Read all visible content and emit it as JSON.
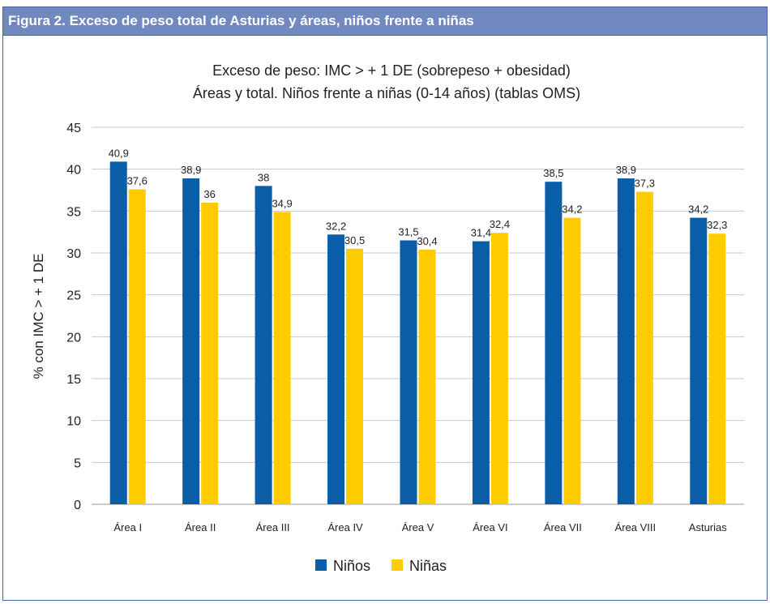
{
  "figure_caption": "Figura 2.  Exceso de peso total de Asturias y áreas, niños frente a niñas",
  "chart_data": {
    "type": "bar",
    "title": [
      "Exceso de peso: IMC > + 1 DE (sobrepeso + obesidad)",
      "Áreas y total. Niños frente a niñas (0-14 años) (tablas OMS)"
    ],
    "xlabel": "",
    "ylabel": "% con IMC > + 1 DE",
    "ylim": [
      0,
      45
    ],
    "yticks": [
      0,
      5,
      10,
      15,
      20,
      25,
      30,
      35,
      40,
      45
    ],
    "grid": true,
    "legend_position": "bottom",
    "categories": [
      "Área I",
      "Área II",
      "Área III",
      "Área IV",
      "Área V",
      "Área VI",
      "Área VII",
      "Área VIII",
      "Asturias"
    ],
    "series": [
      {
        "name": "Niños",
        "color": "#0a5ea8",
        "values": [
          40.9,
          38.9,
          38,
          32.2,
          31.5,
          31.4,
          38.5,
          38.9,
          34.2
        ],
        "labels": [
          "40,9",
          "38,9",
          "38",
          "32,2",
          "31,5",
          "31,4",
          "38,5",
          "38,9",
          "34,2"
        ]
      },
      {
        "name": "Niñas",
        "color": "#fecc00",
        "values": [
          37.6,
          36,
          34.9,
          30.5,
          30.4,
          32.4,
          34.2,
          37.3,
          32.3
        ],
        "labels": [
          "37,6",
          "36",
          "34,9",
          "30,5",
          "30,4",
          "32,4",
          "34,2",
          "37,3",
          "32,3"
        ]
      }
    ]
  }
}
